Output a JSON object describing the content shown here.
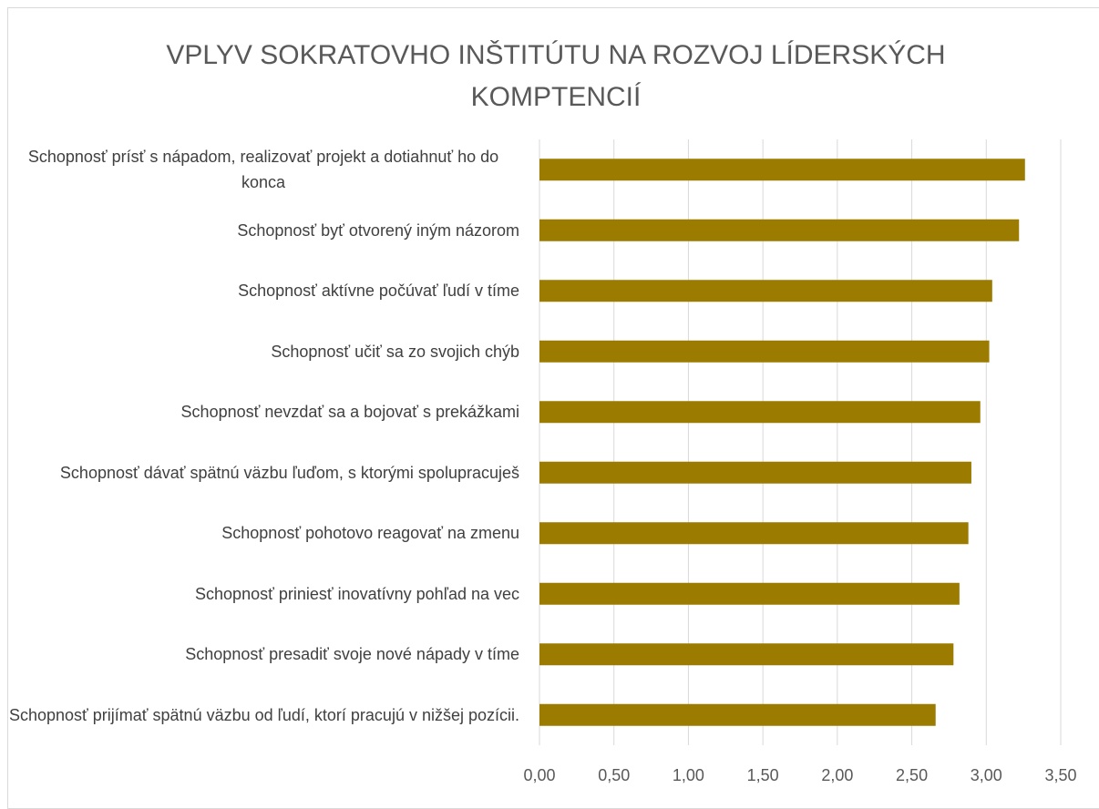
{
  "chart_data": {
    "type": "bar",
    "orientation": "horizontal",
    "title": "VPLYV SOKRATOVHO INŠTITÚTU NA ROZVOJ LÍDERSKÝCH KOMPTENCIÍ",
    "categories": [
      "Schopnosť prísť s nápadom, realizovať projekt a dotiahnuť ho do konca",
      "Schopnosť byť otvorený iným názorom",
      "Schopnosť aktívne počúvať ľudí v tíme",
      "Schopnosť učiť sa zo svojich chýb",
      "Schopnosť nevzdať sa a bojovať s prekážkami",
      "Schopnosť dávať spätnú väzbu ľuďom, s ktorými spolupracuješ",
      "Schopnosť pohotovo reagovať na zmenu",
      "Schopnosť priniesť inovatívny pohľad na vec",
      "Schopnosť presadiť svoje nové nápady v tíme",
      "Schopnosť prijímať spätnú väzbu od ľudí, ktorí pracujú v nižšej pozícii."
    ],
    "values": [
      3.26,
      3.22,
      3.04,
      3.02,
      2.96,
      2.9,
      2.88,
      2.82,
      2.78,
      2.66
    ],
    "color": "#9c7c00",
    "xlim": [
      0,
      3.5
    ],
    "xticks": [
      {
        "value": 0,
        "label": "0,00"
      },
      {
        "value": 0.5,
        "label": "0,50"
      },
      {
        "value": 1,
        "label": "1,00"
      },
      {
        "value": 1.5,
        "label": "1,50"
      },
      {
        "value": 2,
        "label": "2,00"
      },
      {
        "value": 2.5,
        "label": "2,50"
      },
      {
        "value": 3,
        "label": "3,00"
      },
      {
        "value": 3.5,
        "label": "3,50"
      }
    ],
    "grid": true
  }
}
